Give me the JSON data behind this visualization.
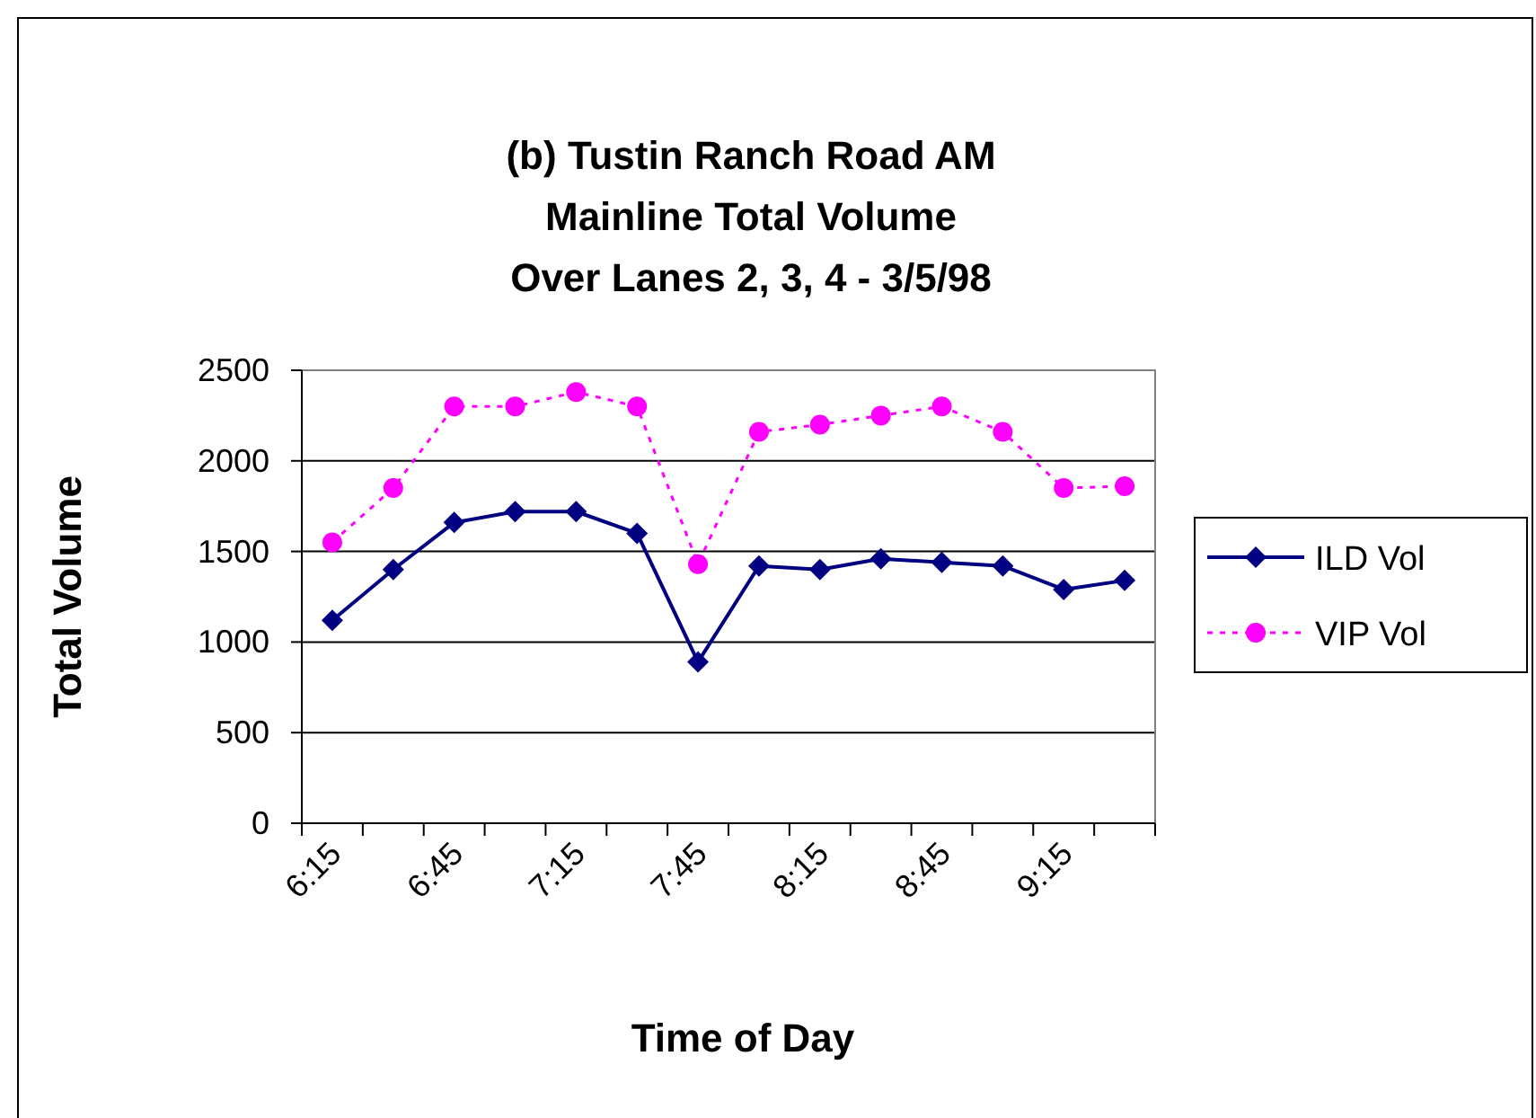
{
  "chart_data": {
    "type": "line",
    "title": "(b) Tustin Ranch Road AM\nMainline Total Volume\nOver Lanes 2, 3, 4 - 3/5/98",
    "xlabel": "Time of Day",
    "ylabel": "Total Volume",
    "categories": [
      "6:15",
      null,
      "6:45",
      null,
      "7:15",
      null,
      "7:45",
      null,
      "8:15",
      null,
      "8:45",
      null,
      "9:15",
      null
    ],
    "series": [
      {
        "name": "ILD Vol",
        "color": "#000080",
        "marker": "diamond",
        "line_style": "solid",
        "values": [
          1120,
          1400,
          1660,
          1720,
          1720,
          1600,
          890,
          1420,
          1400,
          1460,
          1440,
          1420,
          1290,
          1340
        ]
      },
      {
        "name": "VIP Vol",
        "color": "#ff00ff",
        "marker": "circle",
        "line_style": "dotted",
        "values": [
          1550,
          1850,
          2300,
          2300,
          2380,
          2300,
          1430,
          2160,
          2200,
          2250,
          2300,
          2160,
          1850,
          1860
        ]
      }
    ],
    "ylim": [
      0,
      2500
    ],
    "yticks": [
      0,
      500,
      1000,
      1500,
      2000,
      2500
    ],
    "grid": "y",
    "legend": "right"
  }
}
